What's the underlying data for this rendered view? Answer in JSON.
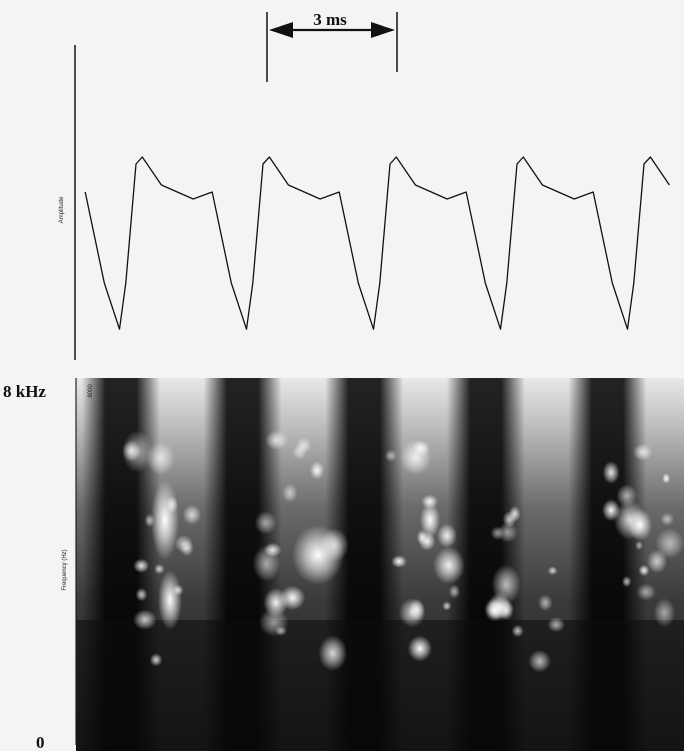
{
  "chart_data": [
    {
      "type": "line",
      "title": "",
      "ylabel": "Amplitude",
      "xlabel": "",
      "annotation": "3 ms",
      "period_ms": 3,
      "pitch_periods_shown": 5,
      "waveform_cycle": {
        "phase": [
          0,
          0.05,
          0.2,
          0.45,
          0.6,
          0.75,
          0.87,
          0.92,
          1.0
        ],
        "amplitude": [
          0.2,
          0.25,
          0.05,
          -0.05,
          0.0,
          -0.65,
          -0.98,
          -0.65,
          0.2
        ]
      },
      "grid": false
    },
    {
      "type": "heatmap",
      "title": "",
      "ylabel": "Frequency (Hz)",
      "y_top_label": "8 kHz",
      "y_bottom_label": "0",
      "y_axis_tick_top": "8000",
      "ylim": [
        0,
        8000
      ],
      "dark_bands": 5,
      "grid": false
    }
  ]
}
